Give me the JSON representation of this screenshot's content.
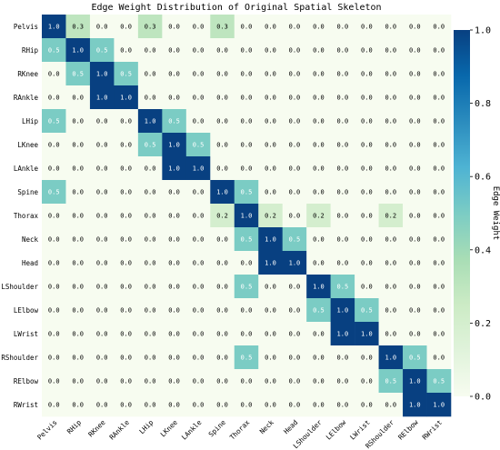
{
  "chart_data": {
    "type": "heatmap",
    "title": "Edge Weight Distribution of Original Spatial Skeleton",
    "rows": [
      "Pelvis",
      "RHip",
      "RKnee",
      "RAnkle",
      "LHip",
      "LKnee",
      "LAnkle",
      "Spine",
      "Thorax",
      "Neck",
      "Head",
      "LShoulder",
      "LElbow",
      "LWrist",
      "RShoulder",
      "RElbow",
      "RWrist"
    ],
    "columns": [
      "Pelvis",
      "RHip",
      "RKnee",
      "RAnkle",
      "LHip",
      "LKnee",
      "LAnkle",
      "Spine",
      "Thorax",
      "Neck",
      "Head",
      "LShoulder",
      "LElbow",
      "LWrist",
      "RShoulder",
      "RElbow",
      "RWrist"
    ],
    "values": [
      [
        1.0,
        0.3,
        0.0,
        0.0,
        0.3,
        0.0,
        0.0,
        0.3,
        0.0,
        0.0,
        0.0,
        0.0,
        0.0,
        0.0,
        0.0,
        0.0,
        0.0
      ],
      [
        0.5,
        1.0,
        0.5,
        0.0,
        0.0,
        0.0,
        0.0,
        0.0,
        0.0,
        0.0,
        0.0,
        0.0,
        0.0,
        0.0,
        0.0,
        0.0,
        0.0
      ],
      [
        0.0,
        0.5,
        1.0,
        0.5,
        0.0,
        0.0,
        0.0,
        0.0,
        0.0,
        0.0,
        0.0,
        0.0,
        0.0,
        0.0,
        0.0,
        0.0,
        0.0
      ],
      [
        0.0,
        0.0,
        1.0,
        1.0,
        0.0,
        0.0,
        0.0,
        0.0,
        0.0,
        0.0,
        0.0,
        0.0,
        0.0,
        0.0,
        0.0,
        0.0,
        0.0
      ],
      [
        0.5,
        0.0,
        0.0,
        0.0,
        1.0,
        0.5,
        0.0,
        0.0,
        0.0,
        0.0,
        0.0,
        0.0,
        0.0,
        0.0,
        0.0,
        0.0,
        0.0
      ],
      [
        0.0,
        0.0,
        0.0,
        0.0,
        0.5,
        1.0,
        0.5,
        0.0,
        0.0,
        0.0,
        0.0,
        0.0,
        0.0,
        0.0,
        0.0,
        0.0,
        0.0
      ],
      [
        0.0,
        0.0,
        0.0,
        0.0,
        0.0,
        1.0,
        1.0,
        0.0,
        0.0,
        0.0,
        0.0,
        0.0,
        0.0,
        0.0,
        0.0,
        0.0,
        0.0
      ],
      [
        0.5,
        0.0,
        0.0,
        0.0,
        0.0,
        0.0,
        0.0,
        1.0,
        0.5,
        0.0,
        0.0,
        0.0,
        0.0,
        0.0,
        0.0,
        0.0,
        0.0
      ],
      [
        0.0,
        0.0,
        0.0,
        0.0,
        0.0,
        0.0,
        0.0,
        0.2,
        1.0,
        0.2,
        0.0,
        0.2,
        0.0,
        0.0,
        0.2,
        0.0,
        0.0
      ],
      [
        0.0,
        0.0,
        0.0,
        0.0,
        0.0,
        0.0,
        0.0,
        0.0,
        0.5,
        1.0,
        0.5,
        0.0,
        0.0,
        0.0,
        0.0,
        0.0,
        0.0
      ],
      [
        0.0,
        0.0,
        0.0,
        0.0,
        0.0,
        0.0,
        0.0,
        0.0,
        0.0,
        1.0,
        1.0,
        0.0,
        0.0,
        0.0,
        0.0,
        0.0,
        0.0
      ],
      [
        0.0,
        0.0,
        0.0,
        0.0,
        0.0,
        0.0,
        0.0,
        0.0,
        0.5,
        0.0,
        0.0,
        1.0,
        0.5,
        0.0,
        0.0,
        0.0,
        0.0
      ],
      [
        0.0,
        0.0,
        0.0,
        0.0,
        0.0,
        0.0,
        0.0,
        0.0,
        0.0,
        0.0,
        0.0,
        0.5,
        1.0,
        0.5,
        0.0,
        0.0,
        0.0
      ],
      [
        0.0,
        0.0,
        0.0,
        0.0,
        0.0,
        0.0,
        0.0,
        0.0,
        0.0,
        0.0,
        0.0,
        0.0,
        1.0,
        1.0,
        0.0,
        0.0,
        0.0
      ],
      [
        0.0,
        0.0,
        0.0,
        0.0,
        0.0,
        0.0,
        0.0,
        0.0,
        0.5,
        0.0,
        0.0,
        0.0,
        0.0,
        0.0,
        1.0,
        0.5,
        0.0
      ],
      [
        0.0,
        0.0,
        0.0,
        0.0,
        0.0,
        0.0,
        0.0,
        0.0,
        0.0,
        0.0,
        0.0,
        0.0,
        0.0,
        0.0,
        0.5,
        1.0,
        0.5
      ],
      [
        0.0,
        0.0,
        0.0,
        0.0,
        0.0,
        0.0,
        0.0,
        0.0,
        0.0,
        0.0,
        0.0,
        0.0,
        0.0,
        0.0,
        0.0,
        1.0,
        1.0
      ]
    ],
    "colorbar": {
      "label": "Edge Weight",
      "range": [
        0.0,
        1.0
      ],
      "ticks": [
        "0.0",
        "0.2",
        "0.4",
        "0.6",
        "0.8",
        "1.0"
      ],
      "colormap": "GnBu",
      "stops": [
        "#f7fcf0",
        "#e0f3db",
        "#ccebc5",
        "#a8ddb5",
        "#7bccc4",
        "#4eb3d3",
        "#2b8cbe",
        "#0868ac",
        "#084081"
      ]
    },
    "value_format": "one-decimal",
    "grid": false
  }
}
